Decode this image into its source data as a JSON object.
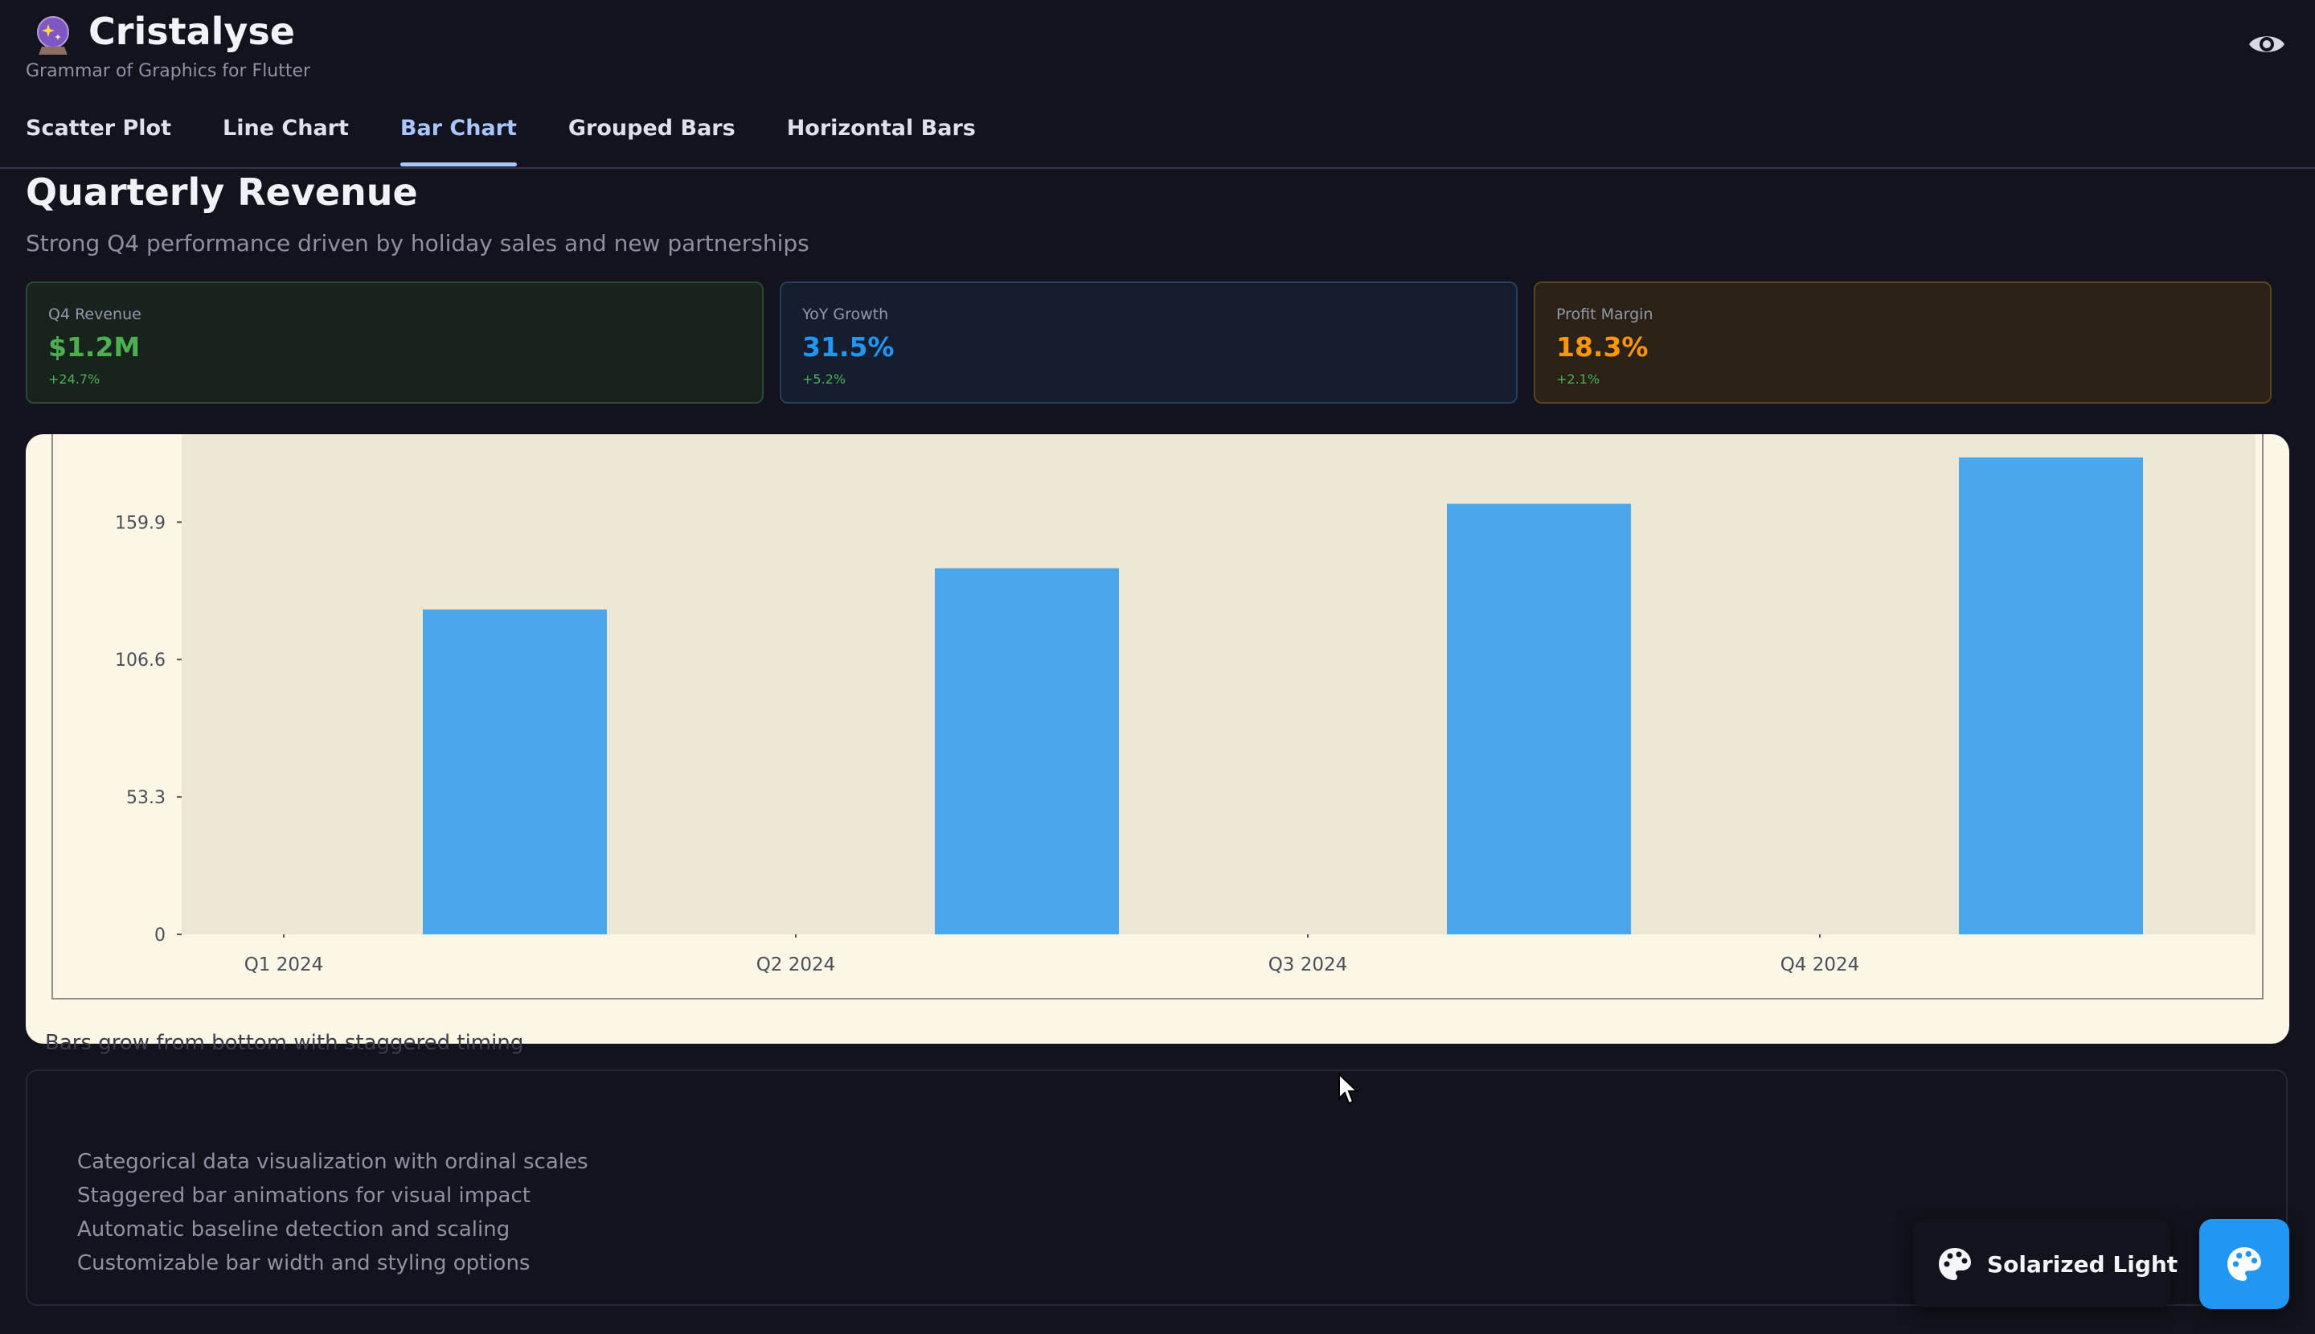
{
  "app": {
    "title": "Cristalyse",
    "subtitle": "Grammar of Graphics for Flutter",
    "logo_icon": "crystal-ball-icon",
    "visibility_icon": "eye-icon"
  },
  "tabs": [
    {
      "label": "Scatter Plot",
      "active": false
    },
    {
      "label": "Line Chart",
      "active": false
    },
    {
      "label": "Bar Chart",
      "active": true
    },
    {
      "label": "Grouped Bars",
      "active": false
    },
    {
      "label": "Horizontal Bars",
      "active": false
    }
  ],
  "page": {
    "title": "Quarterly Revenue",
    "subtitle": "Strong Q4 performance driven by holiday sales and new partnerships"
  },
  "metrics": [
    {
      "label": "Q4 Revenue",
      "value": "$1.2M",
      "change": "+24.7%",
      "color": "#4caf50"
    },
    {
      "label": "YoY Growth",
      "value": "31.5%",
      "change": "+5.2%",
      "color": "#2196f3"
    },
    {
      "label": "Profit Margin",
      "value": "18.3%",
      "change": "+2.1%",
      "color": "#ff9800"
    }
  ],
  "chart_data": {
    "type": "bar",
    "categories": [
      "Q1 2024",
      "Q2 2024",
      "Q3 2024",
      "Q4 2024"
    ],
    "values": [
      126,
      142,
      167,
      185
    ],
    "y_ticks": [
      "0",
      "53.3",
      "106.6",
      "159.9"
    ],
    "y_tick_values": [
      0,
      53.3,
      106.6,
      159.9
    ],
    "ylim": [
      0,
      194
    ],
    "title": "",
    "xlabel": "",
    "ylabel": "",
    "bar_color": "#4ba6ea",
    "plot_background": "#ede7d6",
    "panel_background": "#fbf6e6"
  },
  "chart_caption": "Bars grow from bottom with staggered timing",
  "features": [
    "Categorical data visualization with ordinal scales",
    "Staggered bar animations for visual impact",
    "Automatic baseline detection and scaling",
    "Customizable bar width and styling options"
  ],
  "theme": {
    "label": "Solarized Light",
    "icon": "palette-icon",
    "fab_color": "#2196f3"
  }
}
